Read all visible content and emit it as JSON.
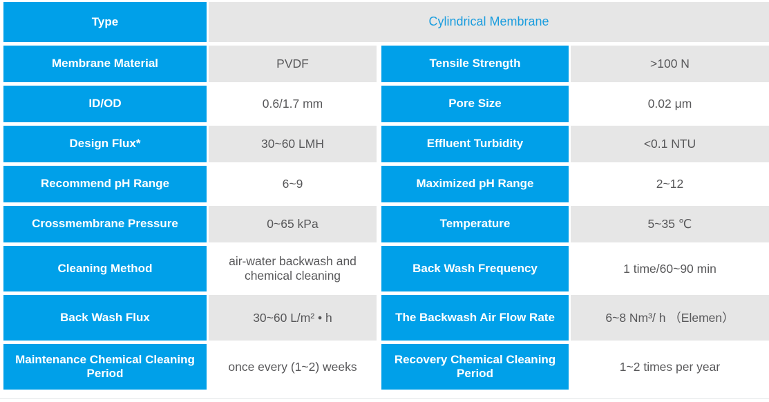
{
  "colors": {
    "cell_blue": "#00a0e9",
    "shaded_value_bg": "#e6e6e6",
    "label_text": "#ffffff",
    "value_text": "#58585a",
    "header_value_text": "#1b9dde"
  },
  "table": {
    "header_row": {
      "label": "Type",
      "value": "Cylindrical Membrane"
    },
    "rows": [
      {
        "left_label": "Membrane Material",
        "left_value": "PVDF",
        "right_label": "Tensile Strength",
        "right_value": ">100 N",
        "shaded": true
      },
      {
        "left_label": "ID/OD",
        "left_value": "0.6/1.7 mm",
        "right_label": "Pore Size",
        "right_value": "0.02 μm",
        "shaded": false
      },
      {
        "left_label": "Design Flux*",
        "left_value": "30~60 LMH",
        "right_label": "Effluent Turbidity",
        "right_value": "<0.1 NTU",
        "shaded": true
      },
      {
        "left_label": "Recommend pH Range",
        "left_value": "6~9",
        "right_label": "Maximized pH Range",
        "right_value": "2~12",
        "shaded": false
      },
      {
        "left_label": "Crossmembrane Pressure",
        "left_value": "0~65 kPa",
        "right_label": "Temperature",
        "right_value": "5~35 ℃",
        "shaded": true
      },
      {
        "left_label": "Cleaning Method",
        "left_value": "air-water backwash and chemical cleaning",
        "right_label": "Back Wash Frequency",
        "right_value": "1 time/60~90 min",
        "shaded": false
      },
      {
        "left_label": "Back Wash Flux",
        "left_value": "30~60 L/m² • h",
        "right_label": "The Backwash Air Flow Rate",
        "right_value": "6~8 Nm³/ h （Elemen）",
        "shaded": true
      },
      {
        "left_label": "Maintenance Chemical Cleaning Period",
        "left_value": "once every (1~2) weeks",
        "right_label": "Recovery Chemical Cleaning Period",
        "right_value": "1~2 times per year",
        "shaded": false
      }
    ]
  }
}
